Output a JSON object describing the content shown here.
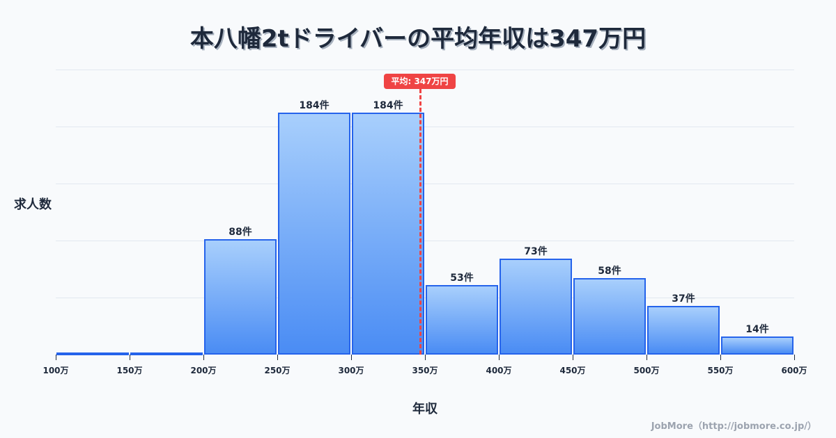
{
  "title": "本八幡2tドライバーの平均年収は347万円",
  "axis": {
    "ylabel": "求人数",
    "xlabel": "年収"
  },
  "mean_badge": "平均: 347万円",
  "credit": "JobMore（http://jobmore.co.jp/）",
  "colors": {
    "bar_border": "#2563eb",
    "bar_top": "#a8cffc",
    "bar_bottom": "#4a8cf4",
    "mean_line": "#ef4444",
    "text": "#1e293b",
    "background": "#f8fafc"
  },
  "ticks": [
    "100万",
    "150万",
    "200万",
    "250万",
    "300万",
    "350万",
    "400万",
    "450万",
    "500万",
    "550万",
    "600万"
  ],
  "bars": [
    {
      "range": "100万-150万",
      "value": 1,
      "label": ""
    },
    {
      "range": "150万-200万",
      "value": 1,
      "label": ""
    },
    {
      "range": "200万-250万",
      "value": 88,
      "label": "88件"
    },
    {
      "range": "250万-300万",
      "value": 184,
      "label": "184件"
    },
    {
      "range": "300万-350万",
      "value": 184,
      "label": "184件"
    },
    {
      "range": "350万-400万",
      "value": 53,
      "label": "53件"
    },
    {
      "range": "400万-450万",
      "value": 73,
      "label": "73件"
    },
    {
      "range": "450万-500万",
      "value": 58,
      "label": "58件"
    },
    {
      "range": "500万-550万",
      "value": 37,
      "label": "37件"
    },
    {
      "range": "550万-600万",
      "value": 14,
      "label": "14件"
    }
  ],
  "chart_data": {
    "type": "bar",
    "title": "本八幡2tドライバーの平均年収は347万円",
    "xlabel": "年収",
    "ylabel": "求人数",
    "categories": [
      "100-150万",
      "150-200万",
      "200-250万",
      "250-300万",
      "300-350万",
      "350-400万",
      "400-450万",
      "450-500万",
      "500-550万",
      "550-600万"
    ],
    "values": [
      1,
      1,
      88,
      184,
      184,
      53,
      73,
      58,
      37,
      14
    ],
    "data_labels": [
      "",
      "",
      "88件",
      "184件",
      "184件",
      "53件",
      "73件",
      "58件",
      "37件",
      "14件"
    ],
    "x_ticks": [
      "100万",
      "150万",
      "200万",
      "250万",
      "300万",
      "350万",
      "400万",
      "450万",
      "500万",
      "550万",
      "600万"
    ],
    "xlim": [
      100,
      600
    ],
    "ylim": [
      0,
      215
    ],
    "grid": true,
    "annotations": [
      {
        "type": "vline",
        "x": 347,
        "label": "平均: 347万円",
        "color": "#ef4444",
        "style": "dashed"
      }
    ],
    "legend": null
  }
}
